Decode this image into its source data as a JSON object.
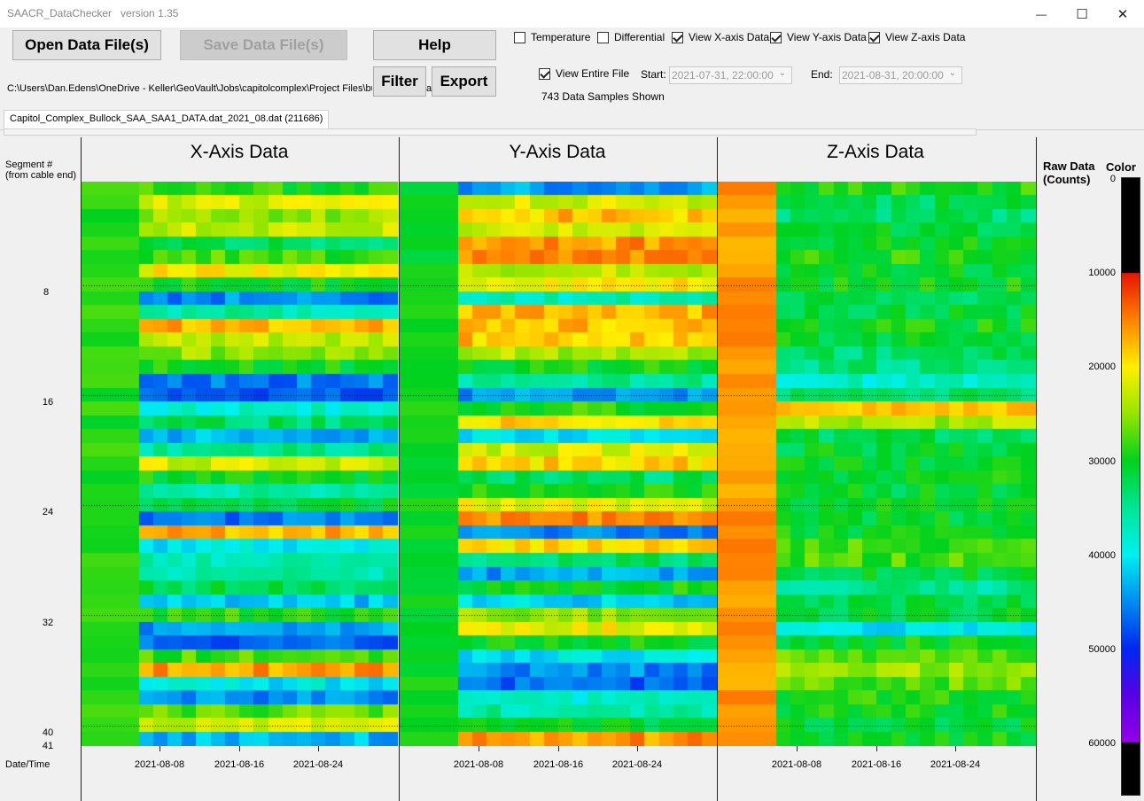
{
  "window": {
    "title": "SAACR_DataChecker   version 1.35",
    "minimize_glyph": "—",
    "maximize_glyph": "☐",
    "close_glyph": "✕"
  },
  "toolbar": {
    "open_label": "Open Data File(s)",
    "save_label": "Save Data File(s)",
    "help_label": "Help",
    "filter_label": "Filter",
    "export_label": "Export"
  },
  "options": {
    "temperature": {
      "label": "Temperature",
      "checked": false
    },
    "differential": {
      "label": "Differential",
      "checked": false
    },
    "view_x": {
      "label": "View X-axis Data",
      "checked": true
    },
    "view_y": {
      "label": "View Y-axis Data",
      "checked": true
    },
    "view_z": {
      "label": "View Z-axis Data",
      "checked": true
    },
    "view_entire": {
      "label": "View Entire File",
      "checked": true
    }
  },
  "range": {
    "start_label": "Start:",
    "start_value": "2021-07-31, 22:00:00",
    "end_label": "End:",
    "end_value": "2021-08-31, 20:00:00",
    "samples_text": "743 Data Samples Shown"
  },
  "file": {
    "path": "C:\\Users\\Dan.Edens\\OneDrive - Keller\\GeoVault\\Jobs\\capitolcomplex\\Project Files\\bu",
    "path_suffix": "a",
    "tab_label": "Capitol_Complex_Bullock_SAA_SAA1_DATA.dat_2021_08.dat (211686)"
  },
  "plot": {
    "segment_axis_label": "Segment #",
    "segment_axis_sublabel": "(from cable end)",
    "segment_ticks": [
      "8",
      "16",
      "24",
      "32",
      "40",
      "41"
    ],
    "date_axis_label": "Date/Time",
    "date_ticks": [
      "2021-08-08",
      "2021-08-16",
      "2021-08-24"
    ],
    "panels": [
      {
        "title": "X-Axis Data"
      },
      {
        "title": "Y-Axis Data"
      },
      {
        "title": "Z-Axis Data"
      }
    ],
    "colorbar": {
      "title": "Raw Data",
      "subtitle": "(Counts)",
      "color_label": "Color",
      "ticks": [
        "0",
        "10000",
        "20000",
        "30000",
        "40000",
        "50000",
        "60000"
      ]
    }
  },
  "chart_data": {
    "type": "heatmap",
    "y_axis": {
      "label": "Segment # (from cable end)",
      "ticks": [
        8,
        16,
        24,
        32,
        40,
        41
      ],
      "range": [
        1,
        41
      ]
    },
    "x_axis": {
      "label": "Date/Time",
      "ticks": [
        "2021-08-08",
        "2021-08-16",
        "2021-08-24"
      ],
      "range": [
        "2021-07-31 22:00:00",
        "2021-08-31 20:00:00"
      ]
    },
    "color_scale": {
      "label": "Raw Data (Counts)",
      "range": [
        0,
        60000
      ],
      "ticks": [
        0,
        10000,
        20000,
        30000,
        40000,
        50000,
        60000
      ]
    },
    "panels": [
      {
        "name": "X-Axis Data",
        "approx_counts_by_segment": [
          29000,
          22000,
          25000,
          23000,
          33000,
          28000,
          20000,
          30000,
          45000,
          36000,
          17000,
          23000,
          25000,
          30000,
          46000,
          47000,
          38000,
          33000,
          43000,
          35000,
          22000,
          30000,
          36000,
          31000,
          46000,
          17000,
          40000,
          37000,
          36000,
          32000,
          42000,
          29000,
          44000,
          47000,
          28000,
          16000,
          40000,
          45000,
          27000,
          22000,
          43000
        ]
      },
      {
        "name": "Y-Axis Data",
        "approx_counts_by_segment": [
          44000,
          22000,
          18000,
          22000,
          16000,
          15000,
          23000,
          20000,
          37000,
          17000,
          18000,
          18000,
          24000,
          30000,
          35000,
          44000,
          29000,
          19000,
          40000,
          22000,
          19000,
          33000,
          30000,
          21000,
          16000,
          45000,
          19000,
          33000,
          44000,
          30000,
          41000,
          25000,
          21000,
          30000,
          40000,
          45000,
          47000,
          38000,
          36000,
          31000,
          16000
        ]
      },
      {
        "name": "Z-Axis Data",
        "approx_counts_by_segment": [
          29000,
          32000,
          33000,
          31000,
          30000,
          29000,
          31000,
          30000,
          32000,
          31000,
          30000,
          31000,
          33000,
          34000,
          38000,
          33000,
          17000,
          24000,
          32000,
          31000,
          31000,
          30000,
          31000,
          30000,
          31000,
          30000,
          28000,
          28000,
          31000,
          35000,
          32000,
          31000,
          40000,
          30000,
          27000,
          25000,
          27000,
          29000,
          30000,
          31000,
          30000
        ]
      }
    ]
  }
}
